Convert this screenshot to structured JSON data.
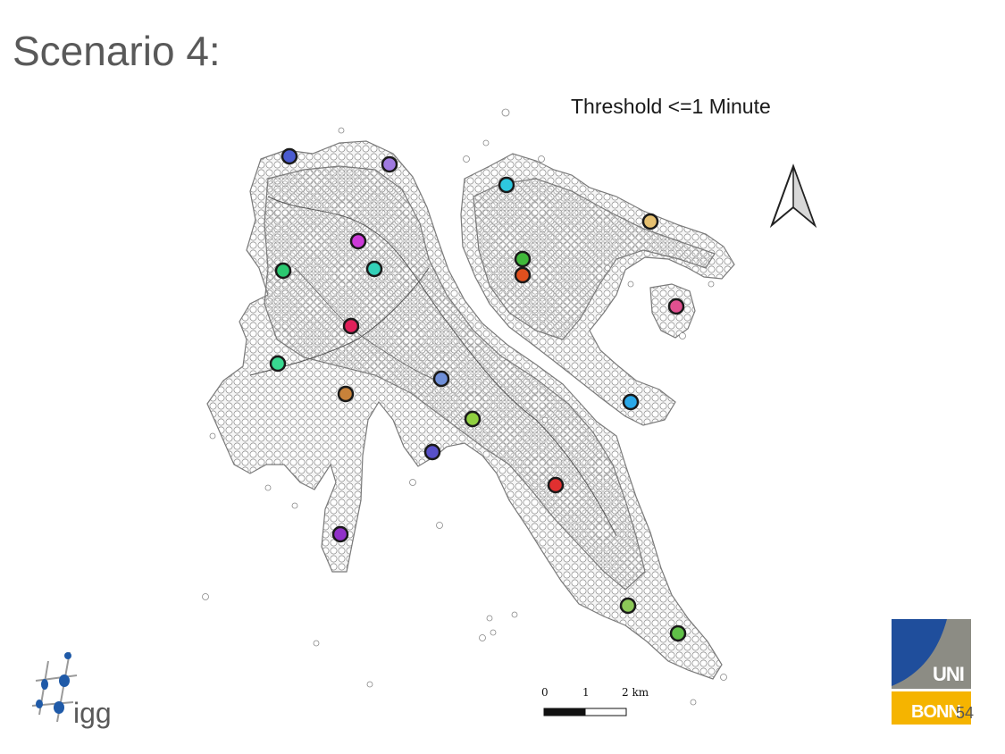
{
  "slide": {
    "title": "Scenario 4:",
    "page_number": "54"
  },
  "map": {
    "subtitle": "Threshold <=1 Minute",
    "scale_bar": {
      "labels": [
        "0",
        "1",
        "2 km"
      ]
    },
    "north_arrow_icon": "north-arrow-icon",
    "marker_colors": [
      "#4a5bd0",
      "#a07ae0",
      "#2ec8e0",
      "#e6c070",
      "#cc3ad8",
      "#2bc870",
      "#33d0b8",
      "#40b83a",
      "#e0501e",
      "#e25090",
      "#e0205a",
      "#38d890",
      "#6f8fd8",
      "#c8823a",
      "#2aa8e8",
      "#90d040",
      "#5850c8",
      "#e03030",
      "#9030c8",
      "#8cc858",
      "#60c048"
    ]
  },
  "logos": {
    "igg": {
      "text": "igg"
    },
    "uni_bonn": {
      "line1": "UNI",
      "line2": "BONN"
    }
  }
}
